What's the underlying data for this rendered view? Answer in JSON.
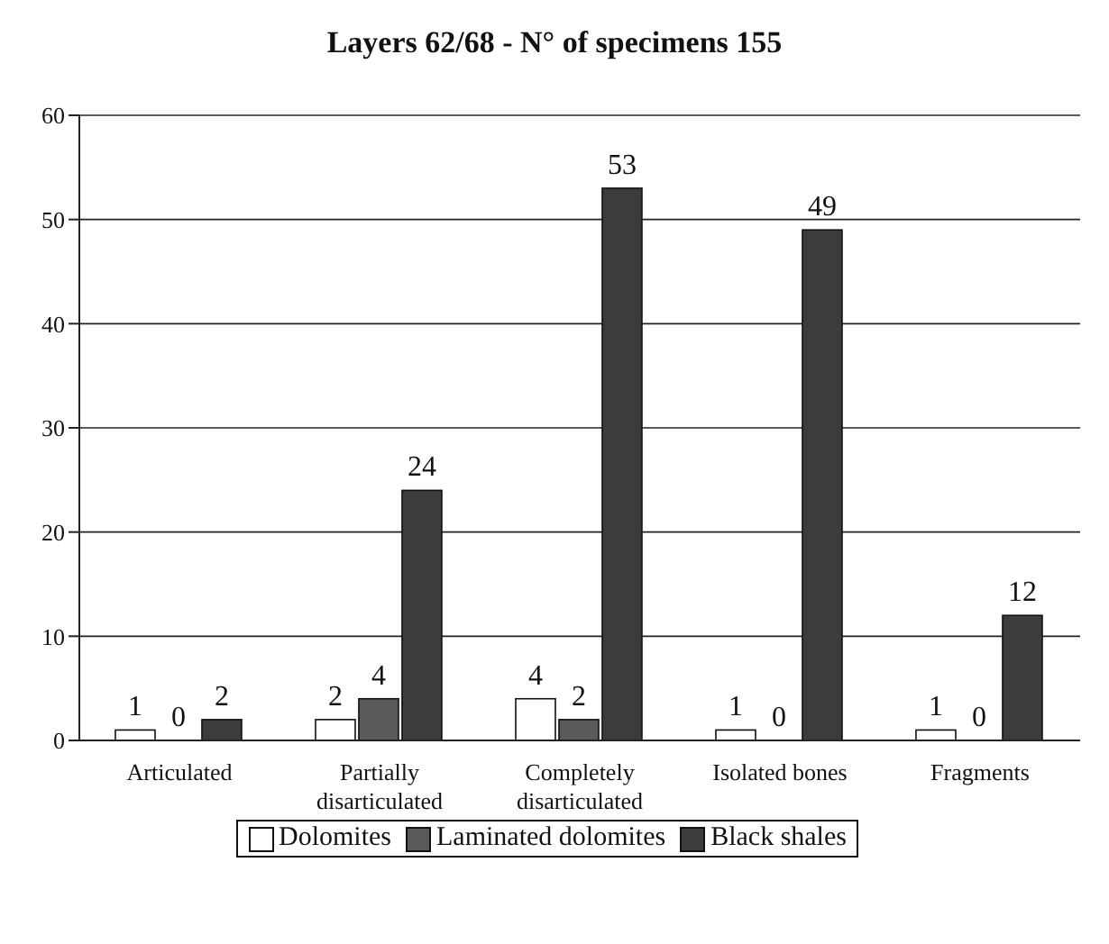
{
  "chart_data": {
    "type": "bar",
    "title": "Layers 62/68 - N° of specimens 155",
    "categories": [
      "Articulated",
      "Partially\ndisarticulated",
      "Completely\ndisarticulated",
      "Isolated bones",
      "Fragments"
    ],
    "series": [
      {
        "name": "Dolomites",
        "color": "#ffffff",
        "values": [
          1,
          2,
          4,
          1,
          1
        ]
      },
      {
        "name": "Laminated dolomites",
        "color": "#5a5a5a",
        "values": [
          0,
          4,
          2,
          0,
          0
        ]
      },
      {
        "name": "Black shales",
        "color": "#3c3c3c",
        "values": [
          2,
          24,
          53,
          49,
          12
        ]
      }
    ],
    "ylim": [
      0,
      60
    ],
    "yticks": [
      0,
      10,
      20,
      30,
      40,
      50,
      60
    ],
    "grid": "y",
    "legend": "bottom",
    "data_labels": true
  }
}
